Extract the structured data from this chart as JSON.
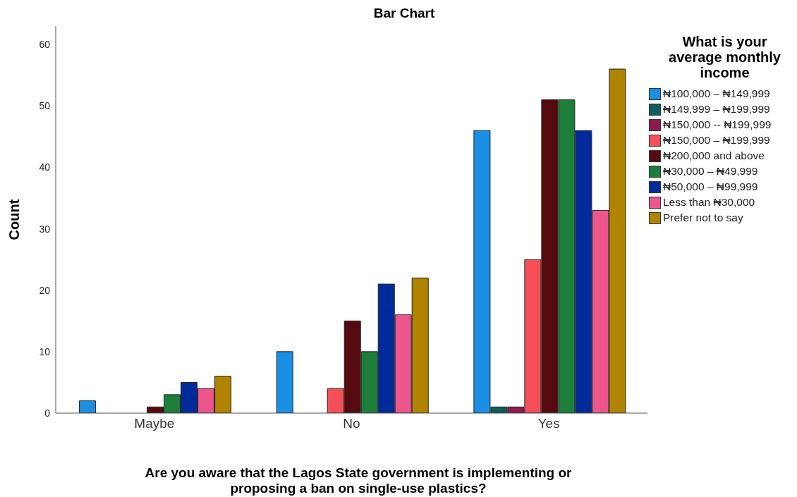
{
  "chart_data": {
    "type": "bar",
    "title": "Bar Chart",
    "xlabel": "Are you aware that the Lagos State government is implementing or proposing a ban on single-use plastics?",
    "ylabel": "Count",
    "legend_title": "What is your average monthly income",
    "categories": [
      "Maybe",
      "No",
      "Yes"
    ],
    "series": [
      {
        "name": "₦100,000 – ₦149,999",
        "color": "#1a8fe3",
        "values": [
          2,
          10,
          46
        ]
      },
      {
        "name": "₦149,999 – ₦199,999",
        "color": "#0b5e5e",
        "values": [
          0,
          0,
          1
        ]
      },
      {
        "name": "₦150,000 -- ₦199,999",
        "color": "#8e1a4e",
        "values": [
          0,
          0,
          1
        ]
      },
      {
        "name": "₦150,000 – ₦199,999",
        "color": "#f74f57",
        "values": [
          0,
          4,
          25
        ]
      },
      {
        "name": "₦200,000 and above",
        "color": "#560a0e",
        "values": [
          1,
          15,
          51
        ]
      },
      {
        "name": "₦30,000 – ₦49,999",
        "color": "#1d7d3a",
        "values": [
          3,
          10,
          51
        ]
      },
      {
        "name": "₦50,000 – ₦99,999",
        "color": "#012a9b",
        "values": [
          5,
          21,
          46
        ]
      },
      {
        "name": "Less than ₦30,000",
        "color": "#ec568d",
        "values": [
          4,
          16,
          33
        ]
      },
      {
        "name": "Prefer not to say",
        "color": "#b08300",
        "values": [
          6,
          22,
          56
        ]
      }
    ],
    "ylim": [
      0,
      63
    ],
    "yticks": [
      0,
      10,
      20,
      30,
      40,
      50,
      60
    ],
    "grid": false,
    "legend": "right"
  }
}
